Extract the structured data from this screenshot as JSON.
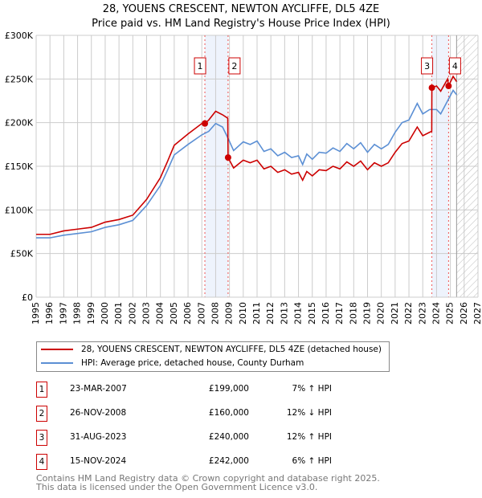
{
  "title": "28, YOUENS CRESCENT, NEWTON AYCLIFFE, DL5 4ZE",
  "subtitle": "Price paid vs. HM Land Registry's House Price Index (HPI)",
  "chart_data": {
    "type": "line",
    "xlim": [
      1995,
      2027
    ],
    "ylim": [
      0,
      300000
    ],
    "yticks": [
      {
        "v": 0,
        "label": "£0"
      },
      {
        "v": 50000,
        "label": "£50K"
      },
      {
        "v": 100000,
        "label": "£100K"
      },
      {
        "v": 150000,
        "label": "£150K"
      },
      {
        "v": 200000,
        "label": "£200K"
      },
      {
        "v": 250000,
        "label": "£250K"
      },
      {
        "v": 300000,
        "label": "£300K"
      }
    ],
    "xticks": [
      "1995",
      "1996",
      "1997",
      "1998",
      "1999",
      "2000",
      "2001",
      "2002",
      "2003",
      "2004",
      "2005",
      "2006",
      "2007",
      "2008",
      "2009",
      "2010",
      "2011",
      "2012",
      "2013",
      "2014",
      "2015",
      "2016",
      "2017",
      "2018",
      "2019",
      "2020",
      "2021",
      "2022",
      "2023",
      "2024",
      "2025",
      "2026",
      "2027"
    ],
    "forecast_start": 2025.45,
    "shaded_ranges": [
      [
        2007.22,
        2008.9
      ],
      [
        2023.66,
        2024.87
      ]
    ],
    "series": [
      {
        "name": "28, YOUENS CRESCENT, NEWTON AYCLIFFE, DL5 4ZE (detached house)",
        "color": "#cc0000",
        "x": [
          1995,
          1996,
          1997,
          1998,
          1999,
          2000,
          2001,
          2002,
          2003,
          2004,
          2004.5,
          2005,
          2006,
          2007,
          2007.22,
          2007.5,
          2008,
          2008.5,
          2008.88,
          2008.9,
          2009.3,
          2010,
          2010.5,
          2011,
          2011.5,
          2012,
          2012.5,
          2013,
          2013.5,
          2014,
          2014.3,
          2014.6,
          2015,
          2015.5,
          2016,
          2016.5,
          2017,
          2017.5,
          2018,
          2018.5,
          2019,
          2019.5,
          2020,
          2020.5,
          2021,
          2021.5,
          2022,
          2022.6,
          2023,
          2023.5,
          2023.65,
          2023.66,
          2024,
          2024.3,
          2024.8,
          2024.87,
          2025.2,
          2025.45
        ],
        "y": [
          72000,
          72000,
          76000,
          78000,
          80000,
          86000,
          89000,
          94000,
          112000,
          137000,
          155000,
          174000,
          187000,
          199000,
          199000,
          203000,
          213000,
          209000,
          205000,
          160000,
          148000,
          157000,
          154000,
          157000,
          147000,
          150000,
          143000,
          146000,
          141000,
          143000,
          134000,
          144000,
          139000,
          146000,
          145000,
          150000,
          147000,
          155000,
          150000,
          156000,
          146000,
          154000,
          150000,
          154000,
          166000,
          176000,
          179000,
          195000,
          185000,
          189000,
          190000,
          240000,
          242000,
          236000,
          250000,
          242000,
          253000,
          247000
        ]
      },
      {
        "name": "HPI: Average price, detached house, County Durham",
        "color": "#5b8fd4",
        "x": [
          1995,
          1996,
          1997,
          1998,
          1999,
          2000,
          2001,
          2002,
          2003,
          2004,
          2004.5,
          2005,
          2006,
          2007,
          2007.5,
          2008,
          2008.5,
          2008.9,
          2009.3,
          2010,
          2010.5,
          2011,
          2011.5,
          2012,
          2012.5,
          2013,
          2013.5,
          2014,
          2014.3,
          2014.6,
          2015,
          2015.5,
          2016,
          2016.5,
          2017,
          2017.5,
          2018,
          2018.5,
          2019,
          2019.5,
          2020,
          2020.5,
          2021,
          2021.5,
          2022,
          2022.6,
          2023,
          2023.5,
          2024,
          2024.3,
          2024.8,
          2025.2,
          2025.45
        ],
        "y": [
          68000,
          68000,
          71000,
          73000,
          75000,
          80000,
          83000,
          88000,
          105000,
          128000,
          145000,
          163000,
          175000,
          186000,
          190000,
          199000,
          195000,
          182000,
          168000,
          178000,
          175000,
          179000,
          167000,
          170000,
          162000,
          166000,
          160000,
          162000,
          152000,
          164000,
          158000,
          166000,
          165000,
          171000,
          167000,
          176000,
          170000,
          177000,
          166000,
          175000,
          170000,
          175000,
          189000,
          200000,
          203000,
          222000,
          210000,
          215000,
          215000,
          210000,
          225000,
          237000,
          232000
        ]
      }
    ],
    "sales": [
      {
        "n": "1",
        "date": "23-MAR-2007",
        "x": 2007.22,
        "price": 199000,
        "price_label": "£199,000",
        "hpi": "7% ↑ HPI"
      },
      {
        "n": "2",
        "date": "26-NOV-2008",
        "x": 2008.9,
        "price": 160000,
        "price_label": "£160,000",
        "hpi": "12% ↓ HPI"
      },
      {
        "n": "3",
        "date": "31-AUG-2023",
        "x": 2023.66,
        "price": 240000,
        "price_label": "£240,000",
        "hpi": "12% ↑ HPI"
      },
      {
        "n": "4",
        "date": "15-NOV-2024",
        "x": 2024.87,
        "price": 242000,
        "price_label": "£242,000",
        "hpi": "6% ↑ HPI"
      }
    ]
  },
  "footer": {
    "line1": "Contains HM Land Registry data © Crown copyright and database right 2025.",
    "line2": "This data is licensed under the Open Government Licence v3.0."
  }
}
